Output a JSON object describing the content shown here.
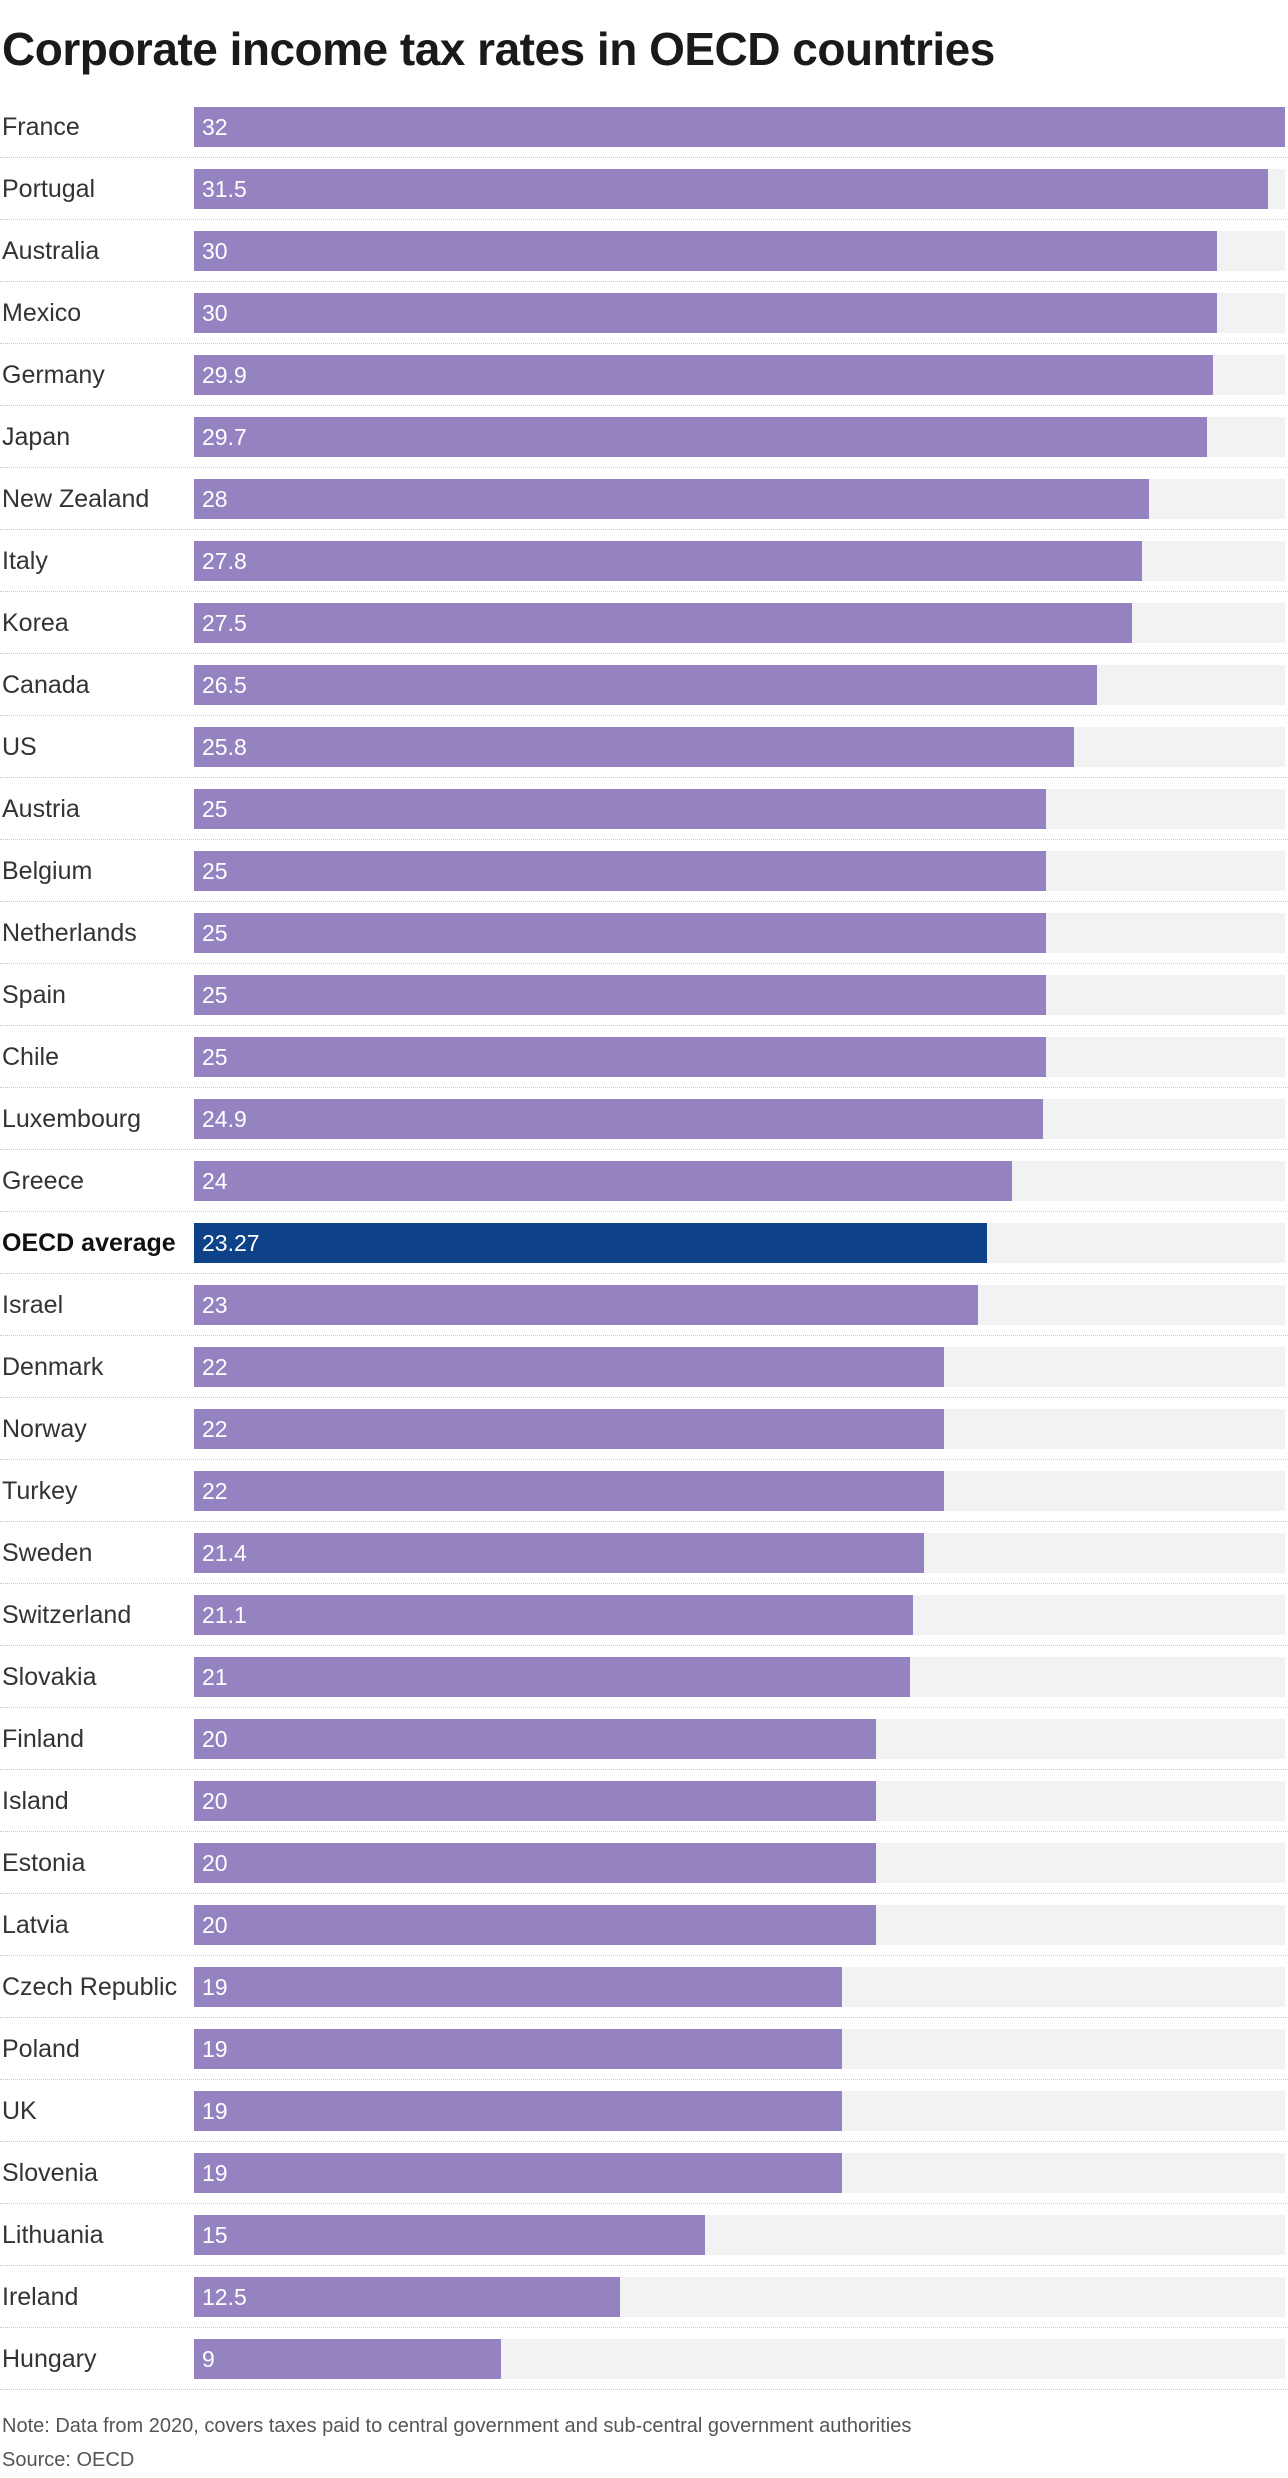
{
  "chart_data": {
    "type": "bar",
    "orientation": "horizontal",
    "title": "Corporate income tax rates in OECD countries",
    "xlabel": "",
    "ylabel": "",
    "xlim": [
      0,
      32
    ],
    "grid": false,
    "legend": "none",
    "highlight_category": "OECD average",
    "colors": {
      "bar": "#9482c1",
      "highlight_bar": "#0d4288",
      "track": "#f2f2f2",
      "value_text": "#ffffff"
    },
    "categories": [
      "France",
      "Portugal",
      "Australia",
      "Mexico",
      "Germany",
      "Japan",
      "New Zealand",
      "Italy",
      "Korea",
      "Canada",
      "US",
      "Austria",
      "Belgium",
      "Netherlands",
      "Spain",
      "Chile",
      "Luxembourg",
      "Greece",
      "OECD average",
      "Israel",
      "Denmark",
      "Norway",
      "Turkey",
      "Sweden",
      "Switzerland",
      "Slovakia",
      "Finland",
      "Island",
      "Estonia",
      "Latvia",
      "Czech Republic",
      "Poland",
      "UK",
      "Slovenia",
      "Lithuania",
      "Ireland",
      "Hungary"
    ],
    "values": [
      32,
      31.5,
      30,
      30,
      29.9,
      29.7,
      28,
      27.8,
      27.5,
      26.5,
      25.8,
      25,
      25,
      25,
      25,
      25,
      24.9,
      24,
      23.27,
      23,
      22,
      22,
      22,
      21.4,
      21.1,
      21,
      20,
      20,
      20,
      20,
      19,
      19,
      19,
      19,
      15,
      12.5,
      9
    ],
    "value_labels": [
      "32",
      "31.5",
      "30",
      "30",
      "29.9",
      "29.7",
      "28",
      "27.8",
      "27.5",
      "26.5",
      "25.8",
      "25",
      "25",
      "25",
      "25",
      "25",
      "24.9",
      "24",
      "23.27",
      "23",
      "22",
      "22",
      "22",
      "21.4",
      "21.1",
      "21",
      "20",
      "20",
      "20",
      "20",
      "19",
      "19",
      "19",
      "19",
      "15",
      "12.5",
      "9"
    ]
  },
  "footer": {
    "note": "Note: Data from 2020, covers taxes paid to central government and sub-central government authorities",
    "source": "Source: OECD"
  }
}
